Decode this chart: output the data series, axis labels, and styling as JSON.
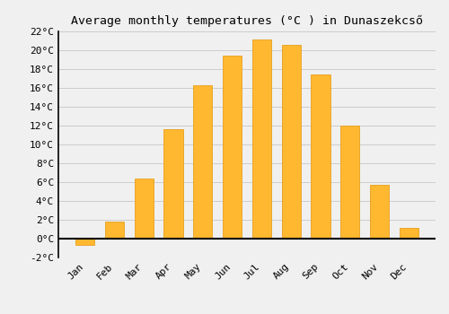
{
  "title": "Average monthly temperatures (°C ) in Dunaszekcső",
  "months": [
    "Jan",
    "Feb",
    "Mar",
    "Apr",
    "May",
    "Jun",
    "Jul",
    "Aug",
    "Sep",
    "Oct",
    "Nov",
    "Dec"
  ],
  "values": [
    -0.7,
    1.8,
    6.4,
    11.6,
    16.3,
    19.4,
    21.1,
    20.6,
    17.4,
    12.0,
    5.7,
    1.1
  ],
  "bar_color": "#FFB830",
  "bar_edge_color": "#E8A020",
  "ylim": [
    -2,
    22
  ],
  "yticks": [
    -2,
    0,
    2,
    4,
    6,
    8,
    10,
    12,
    14,
    16,
    18,
    20,
    22
  ],
  "grid_color": "#cccccc",
  "background_color": "#f0f0f0",
  "plot_bg_color": "#f0f0f0",
  "title_fontsize": 9.5,
  "tick_fontsize": 8,
  "bar_width": 0.65
}
